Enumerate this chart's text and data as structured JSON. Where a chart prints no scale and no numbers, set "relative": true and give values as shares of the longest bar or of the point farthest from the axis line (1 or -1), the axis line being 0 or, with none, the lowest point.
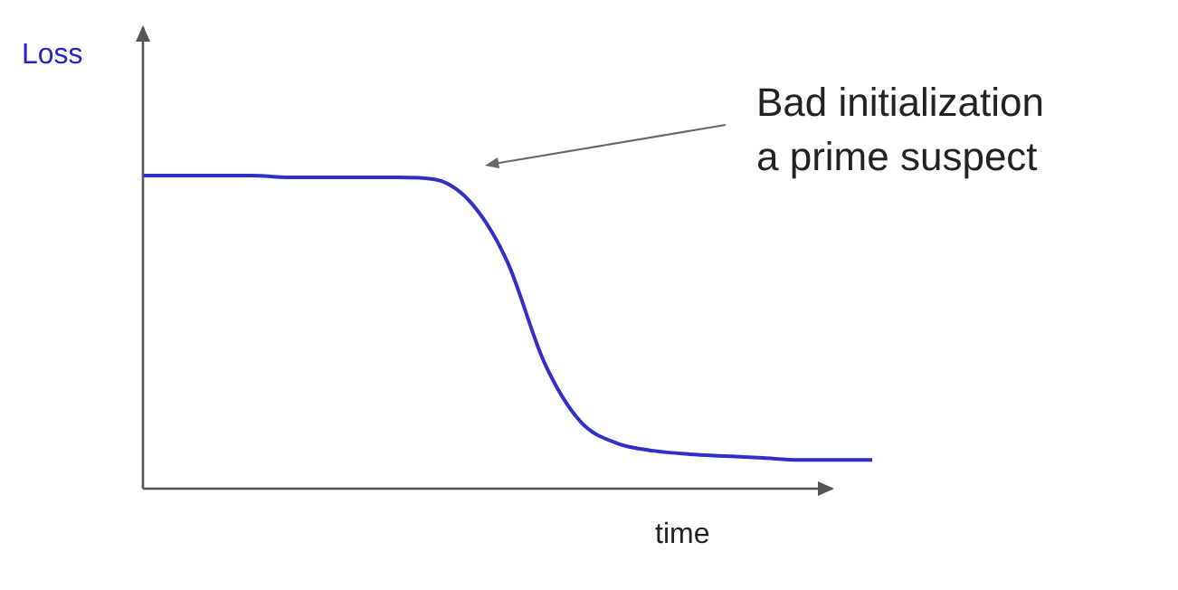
{
  "chart_data": {
    "type": "line",
    "relative": true,
    "ylabel": "Loss",
    "xlabel": "time",
    "annotations": [
      "Bad initialization\na prime suspect"
    ],
    "categories": [
      null,
      null,
      null,
      null,
      null,
      null,
      null,
      null,
      null,
      null,
      null,
      null,
      null,
      null,
      null,
      null,
      null,
      null,
      null,
      null,
      null
    ],
    "series": [
      {
        "color": "#3030c8",
        "values": [
          1,
          1,
          1,
          1,
          0.994,
          0.994,
          0.994,
          0.994,
          0.988,
          0.913,
          0.723,
          0.405,
          0.214,
          0.145,
          0.121,
          0.11,
          0.104,
          0.098,
          0.092,
          0.092,
          0.092
        ]
      }
    ],
    "legend": false,
    "marker": "none",
    "line_style": "solid"
  }
}
